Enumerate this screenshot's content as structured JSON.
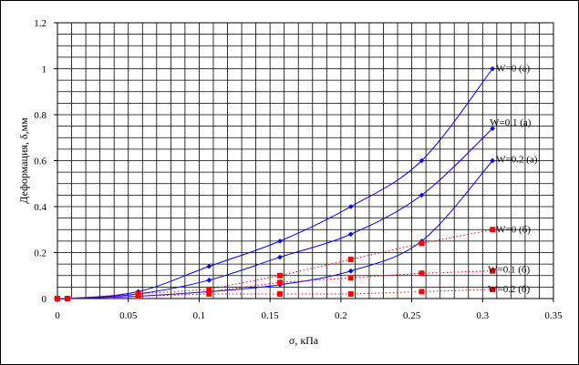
{
  "chart_data": {
    "type": "scatter",
    "title": "",
    "xlabel": "σ, кПа",
    "ylabel": "Деформация, δ,мм",
    "xlim": [
      0,
      0.35
    ],
    "ylim": [
      0,
      1.2
    ],
    "x_ticks": [
      "0",
      "0.05",
      "0.1",
      "0.15",
      "0.2",
      "0.25",
      "0.3",
      "0.35"
    ],
    "y_ticks": [
      "0",
      "0.2",
      "0.4",
      "0.6",
      "0.8",
      "1",
      "1.2"
    ],
    "grid": true,
    "legend": "none",
    "series": [
      {
        "name": "W=0  (а)",
        "color": "#0000ff",
        "marker": "diamond",
        "line": "solid",
        "x": [
          0,
          0.007,
          0.057,
          0.107,
          0.157,
          0.207,
          0.257,
          0.307
        ],
        "y": [
          0,
          0,
          0.03,
          0.14,
          0.25,
          0.4,
          0.6,
          1.0
        ]
      },
      {
        "name": "W=0.1  (а)",
        "color": "#0000ff",
        "marker": "diamond",
        "line": "solid",
        "x": [
          0,
          0.007,
          0.057,
          0.107,
          0.157,
          0.207,
          0.257,
          0.307
        ],
        "y": [
          0,
          0,
          0.02,
          0.08,
          0.18,
          0.28,
          0.45,
          0.74
        ]
      },
      {
        "name": "W=0.2  (а)",
        "color": "#0000ff",
        "marker": "diamond",
        "line": "solid",
        "x": [
          0,
          0.007,
          0.057,
          0.107,
          0.157,
          0.207,
          0.257,
          0.307
        ],
        "y": [
          0,
          0,
          0.01,
          0.03,
          0.06,
          0.12,
          0.25,
          0.6
        ]
      },
      {
        "name": "W=0  (б)",
        "color": "#ff0000",
        "marker": "square",
        "line": "dotted",
        "x": [
          0,
          0.007,
          0.057,
          0.107,
          0.157,
          0.207,
          0.257,
          0.307
        ],
        "y": [
          0,
          0,
          0.02,
          0.04,
          0.1,
          0.17,
          0.24,
          0.3
        ]
      },
      {
        "name": "W=0.1  (б)",
        "color": "#ff0000",
        "marker": "square",
        "line": "dotted",
        "x": [
          0,
          0.007,
          0.057,
          0.107,
          0.157,
          0.207,
          0.257,
          0.307
        ],
        "y": [
          0,
          0,
          0.01,
          0.03,
          0.07,
          0.09,
          0.11,
          0.12
        ]
      },
      {
        "name": "W=0.2  (б)",
        "color": "#ff0000",
        "marker": "square",
        "line": "dotted",
        "x": [
          0,
          0.007,
          0.057,
          0.107,
          0.157,
          0.207,
          0.257,
          0.307
        ],
        "y": [
          0,
          0,
          0.01,
          0.02,
          0.02,
          0.02,
          0.03,
          0.04
        ]
      }
    ]
  }
}
